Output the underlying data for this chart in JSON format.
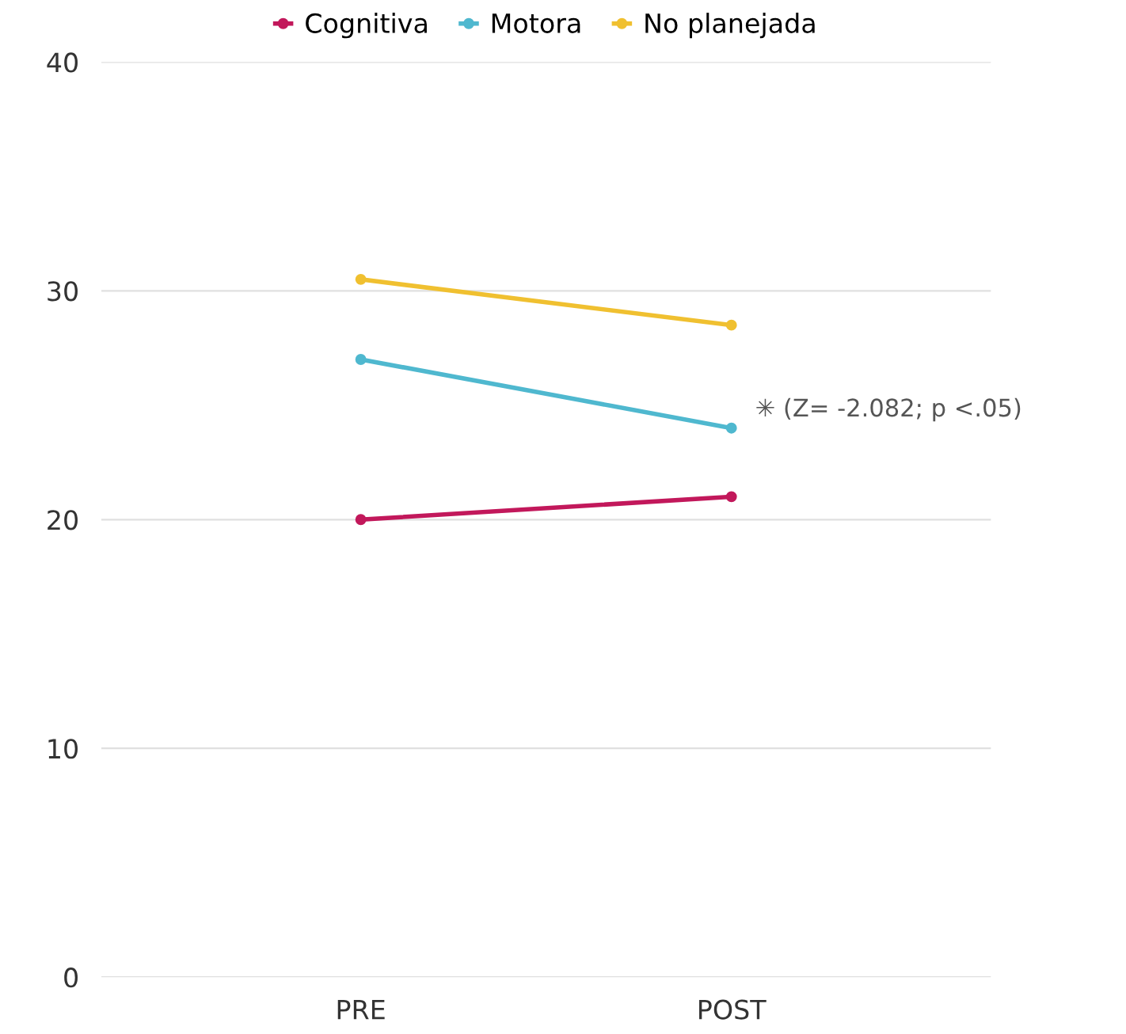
{
  "chart_data": {
    "type": "line",
    "categories": [
      "PRE",
      "POST"
    ],
    "series": [
      {
        "name": "Cognitiva",
        "color": "#c2185b",
        "values": [
          20,
          21
        ]
      },
      {
        "name": "Motora",
        "color": "#4fb8cf",
        "values": [
          27,
          24
        ]
      },
      {
        "name": "No planejada",
        "color": "#f0c030",
        "values": [
          30.5,
          28.5
        ]
      }
    ],
    "ylim": [
      0,
      40
    ],
    "yticks": [
      0,
      10,
      20,
      30,
      40
    ],
    "grid": "y",
    "legend": "top",
    "marker": "circle",
    "line_style": "solid",
    "annotations": [
      "✳ (Z= -2.082; p <.05)"
    ]
  }
}
